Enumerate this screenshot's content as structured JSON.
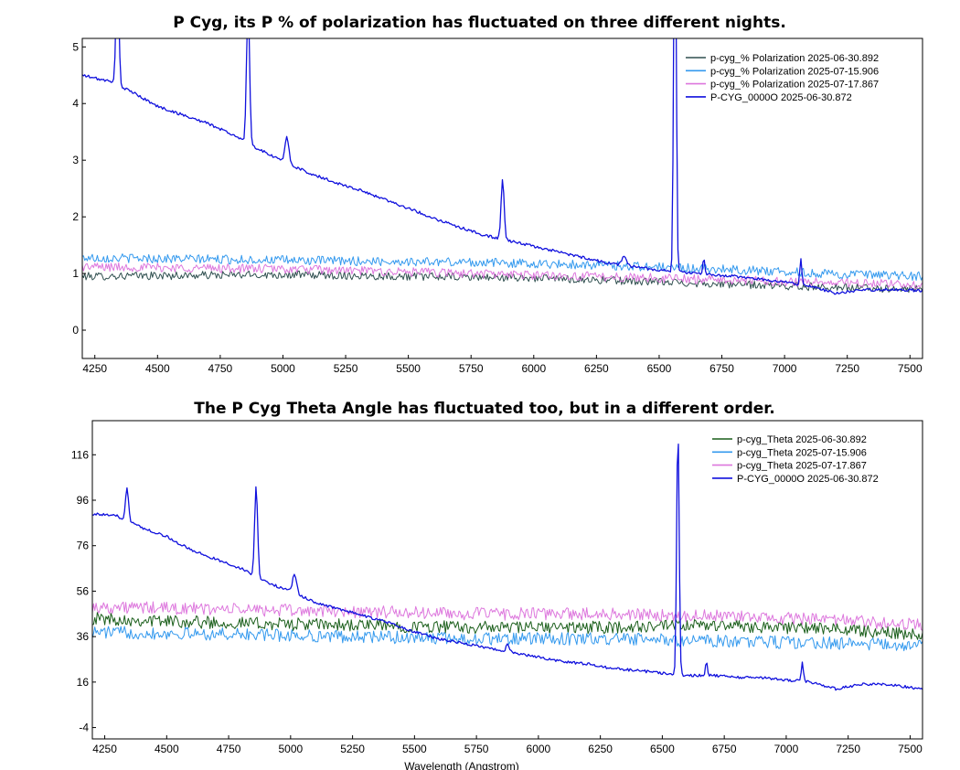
{
  "chart_data": [
    {
      "type": "line",
      "title": "P Cyg, its P % of polarization has fluctuated on three different nights.",
      "xlabel": "",
      "ylabel": "",
      "xlim": [
        4200,
        7550
      ],
      "ylim": [
        -0.5,
        5.15
      ],
      "xticks": [
        4250,
        4500,
        4750,
        5000,
        5250,
        5500,
        5750,
        6000,
        6250,
        6500,
        6750,
        7000,
        7250,
        7500
      ],
      "yticks": [
        0,
        1,
        2,
        3,
        4,
        5
      ],
      "grid": false,
      "legend_position": "top-right",
      "series": [
        {
          "name": "p-cyg_% Polarization  2025-06-30.892",
          "color": "#2f4f4f",
          "noise": 0.07,
          "points": [
            [
              4200,
              0.95
            ],
            [
              5000,
              0.98
            ],
            [
              6000,
              0.92
            ],
            [
              6500,
              0.85
            ],
            [
              7000,
              0.78
            ],
            [
              7550,
              0.72
            ]
          ]
        },
        {
          "name": "p-cyg_% Polarization  2025-07-15.906",
          "color": "#3399ee",
          "noise": 0.08,
          "points": [
            [
              4200,
              1.28
            ],
            [
              4750,
              1.25
            ],
            [
              5250,
              1.22
            ],
            [
              5750,
              1.2
            ],
            [
              6250,
              1.15
            ],
            [
              6750,
              1.08
            ],
            [
              7250,
              0.98
            ],
            [
              7550,
              0.95
            ]
          ]
        },
        {
          "name": "p-cyg_% Polarization  2025-07-17.867",
          "color": "#dd77dd",
          "noise": 0.08,
          "points": [
            [
              4200,
              1.12
            ],
            [
              5000,
              1.08
            ],
            [
              5750,
              1.0
            ],
            [
              6500,
              0.92
            ],
            [
              7000,
              0.86
            ],
            [
              7550,
              0.8
            ]
          ]
        },
        {
          "name": "P-CYG_0000O  2025-06-30.872",
          "color": "#1010dd",
          "noise": 0.025,
          "points": [
            [
              4200,
              4.5
            ],
            [
              4300,
              4.4
            ],
            [
              4400,
              4.2
            ],
            [
              4500,
              3.95
            ],
            [
              4600,
              3.8
            ],
            [
              4700,
              3.65
            ],
            [
              4800,
              3.45
            ],
            [
              4900,
              3.2
            ],
            [
              5000,
              2.98
            ],
            [
              5100,
              2.78
            ],
            [
              5200,
              2.62
            ],
            [
              5300,
              2.48
            ],
            [
              5400,
              2.32
            ],
            [
              5500,
              2.15
            ],
            [
              5600,
              1.98
            ],
            [
              5700,
              1.82
            ],
            [
              5800,
              1.68
            ],
            [
              5900,
              1.58
            ],
            [
              6000,
              1.48
            ],
            [
              6100,
              1.38
            ],
            [
              6200,
              1.28
            ],
            [
              6300,
              1.18
            ],
            [
              6400,
              1.12
            ],
            [
              6500,
              1.06
            ],
            [
              6600,
              1.02
            ],
            [
              6700,
              0.98
            ],
            [
              6800,
              0.95
            ],
            [
              6900,
              0.9
            ],
            [
              7000,
              0.85
            ],
            [
              7100,
              0.78
            ],
            [
              7200,
              0.65
            ],
            [
              7300,
              0.7
            ],
            [
              7400,
              0.72
            ],
            [
              7550,
              0.7
            ]
          ],
          "peaks": [
            [
              4340,
              2.0,
              6
            ],
            [
              4861,
              2.5,
              6
            ],
            [
              5016,
              0.45,
              8
            ],
            [
              5876,
              1.05,
              6
            ],
            [
              6563,
              7.0,
              5
            ],
            [
              6678,
              0.28,
              4
            ],
            [
              7065,
              0.45,
              4
            ],
            [
              6360,
              0.15,
              10
            ]
          ]
        }
      ]
    },
    {
      "type": "line",
      "title": "The P Cyg Theta Angle has fluctuated too, but in a different order.",
      "xlabel": "Wavelength (Angstrom)",
      "ylabel": "",
      "xlim": [
        4200,
        7550
      ],
      "ylim": [
        -9,
        131
      ],
      "xticks": [
        4250,
        4500,
        4750,
        5000,
        5250,
        5500,
        5750,
        6000,
        6250,
        6500,
        6750,
        7000,
        7250,
        7500
      ],
      "yticks": [
        -4,
        16,
        36,
        56,
        76,
        96,
        116
      ],
      "grid": false,
      "legend_position": "top-right",
      "series": [
        {
          "name": "p-cyg_Theta  2025-06-30.892",
          "color": "#1a5e1a",
          "noise": 2.8,
          "points": [
            [
              4200,
              44
            ],
            [
              4750,
              42
            ],
            [
              5250,
              41
            ],
            [
              5750,
              40
            ],
            [
              6250,
              40
            ],
            [
              6750,
              41
            ],
            [
              7250,
              39
            ],
            [
              7550,
              37
            ]
          ]
        },
        {
          "name": "p-cyg_Theta  2025-07-15.906",
          "color": "#3399ee",
          "noise": 2.8,
          "points": [
            [
              4200,
              38
            ],
            [
              4750,
              37
            ],
            [
              5250,
              36
            ],
            [
              5750,
              35
            ],
            [
              6250,
              35
            ],
            [
              6750,
              34
            ],
            [
              7250,
              33
            ],
            [
              7550,
              32
            ]
          ]
        },
        {
          "name": "p-cyg_Theta  2025-07-17.867",
          "color": "#dd77dd",
          "noise": 2.8,
          "points": [
            [
              4200,
              49
            ],
            [
              4750,
              48
            ],
            [
              5250,
              47
            ],
            [
              5750,
              46
            ],
            [
              6250,
              46
            ],
            [
              6750,
              45
            ],
            [
              7250,
              43
            ],
            [
              7550,
              41
            ]
          ]
        },
        {
          "name": "P-CYG_0000O  2025-06-30.872",
          "color": "#1010dd",
          "noise": 0.6,
          "points": [
            [
              4200,
              90
            ],
            [
              4300,
              89
            ],
            [
              4400,
              84
            ],
            [
              4500,
              80
            ],
            [
              4600,
              74
            ],
            [
              4700,
              70
            ],
            [
              4800,
              66
            ],
            [
              4900,
              60
            ],
            [
              5000,
              56
            ],
            [
              5100,
              51
            ],
            [
              5200,
              48
            ],
            [
              5300,
              45
            ],
            [
              5400,
              42
            ],
            [
              5500,
              38
            ],
            [
              5600,
              35
            ],
            [
              5700,
              33
            ],
            [
              5800,
              31
            ],
            [
              5900,
              29
            ],
            [
              6000,
              27
            ],
            [
              6100,
              25
            ],
            [
              6200,
              24
            ],
            [
              6300,
              22
            ],
            [
              6400,
              21
            ],
            [
              6500,
              20
            ],
            [
              6600,
              19
            ],
            [
              6700,
              19
            ],
            [
              6800,
              18
            ],
            [
              6900,
              18
            ],
            [
              7000,
              17
            ],
            [
              7100,
              16
            ],
            [
              7200,
              13
            ],
            [
              7300,
              15
            ],
            [
              7400,
              15
            ],
            [
              7550,
              13
            ]
          ],
          "peaks": [
            [
              4340,
              15,
              6
            ],
            [
              4861,
              40,
              6
            ],
            [
              5016,
              8,
              8
            ],
            [
              5876,
              3,
              6
            ],
            [
              6563,
              110,
              5
            ],
            [
              6678,
              6,
              4
            ],
            [
              7065,
              8,
              4
            ]
          ]
        }
      ]
    }
  ]
}
